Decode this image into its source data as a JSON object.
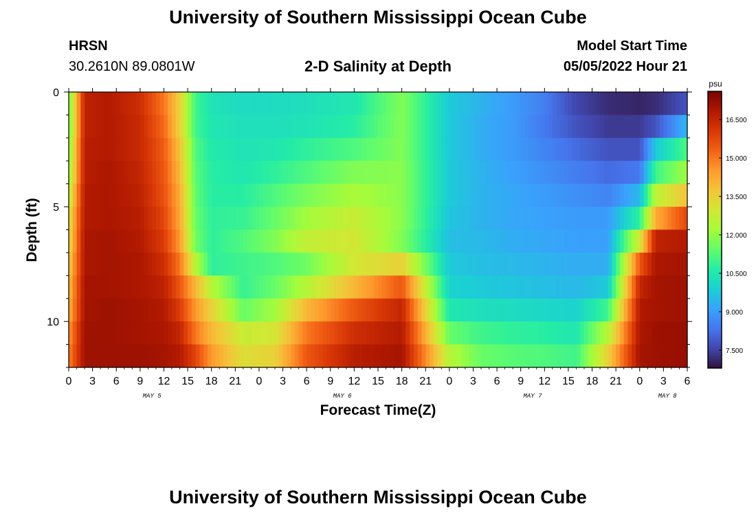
{
  "title": "University of Southern Mississippi Ocean Cube",
  "footer_title": "University of Southern Mississippi Ocean Cube",
  "station": {
    "name": "HRSN",
    "coords": "30.2610N  89.0801W"
  },
  "subtitle": "2-D Salinity at Depth",
  "model_start": {
    "label": "Model Start Time",
    "value": "05/05/2022 Hour 21"
  },
  "chart_data": {
    "type": "heatmap",
    "title": "2-D Salinity at Depth",
    "xlabel": "Forecast Time(Z)",
    "ylabel": "Depth (ft)",
    "x_range_hours_from_may5_00z": [
      0,
      78
    ],
    "y_range_ft": [
      0,
      12
    ],
    "y_inverted": true,
    "x_tick_labels": [
      "0",
      "3",
      "6",
      "9",
      "12",
      "15",
      "18",
      "21",
      "0",
      "3",
      "6",
      "9",
      "12",
      "15",
      "18",
      "21",
      "0",
      "3",
      "6",
      "9",
      "12",
      "15",
      "18",
      "21",
      "0",
      "3",
      "6"
    ],
    "day_labels": [
      {
        "label": "MAY 5",
        "hour": 10.5
      },
      {
        "label": "MAY 6",
        "hour": 34.5
      },
      {
        "label": "MAY 7",
        "hour": 58.5
      },
      {
        "label": "MAY 8",
        "hour": 75.5
      }
    ],
    "y_ticks": [
      0,
      5,
      10
    ],
    "colorbar": {
      "unit": "psu",
      "min": 6.8,
      "max": 17.6,
      "tick_labels": [
        "7.500",
        "9.000",
        "10.500",
        "12.000",
        "13.500",
        "15.000",
        "16.500"
      ],
      "tick_values": [
        7.5,
        9.0,
        10.5,
        12.0,
        13.5,
        15.0,
        16.5
      ]
    },
    "colormap": [
      "#30123b",
      "#4145ab",
      "#4675ed",
      "#39a2fc",
      "#1bcfd4",
      "#24eca6",
      "#61fc6c",
      "#a4fc3b",
      "#d1e834",
      "#f3c63a",
      "#fe9b2d",
      "#f36315",
      "#d93806",
      "#b11901",
      "#7a0402"
    ],
    "depth_levels_ft": [
      0,
      1,
      2,
      3,
      4,
      5,
      6,
      7,
      8,
      9,
      10,
      11
    ],
    "salinity_psu_by_depth": [
      [
        11.5,
        16.6,
        16.8,
        16.3,
        15.0,
        13.5,
        11.0,
        10.4,
        10.2,
        10.2,
        10.3,
        10.5,
        11.8,
        9.8,
        9.4,
        9.0,
        8.5,
        7.6,
        7.2,
        7.1,
        7.2,
        7.8
      ],
      [
        11.5,
        16.6,
        16.8,
        16.4,
        15.2,
        13.5,
        11.0,
        10.5,
        10.3,
        10.3,
        10.4,
        10.7,
        11.8,
        9.8,
        9.3,
        9.0,
        8.4,
        7.8,
        7.4,
        7.4,
        7.8,
        9.5
      ],
      [
        11.8,
        16.7,
        16.8,
        16.4,
        15.4,
        13.8,
        11.2,
        10.6,
        10.4,
        10.5,
        10.8,
        11.2,
        11.8,
        9.8,
        9.3,
        9.0,
        8.6,
        8.2,
        7.8,
        7.8,
        9.8,
        11.2
      ],
      [
        12.0,
        16.7,
        16.9,
        16.5,
        15.5,
        14.0,
        11.3,
        10.7,
        10.5,
        10.8,
        11.2,
        11.8,
        11.9,
        9.8,
        9.4,
        9.1,
        8.8,
        8.5,
        8.2,
        8.4,
        11.0,
        12.2
      ],
      [
        12.5,
        16.8,
        16.9,
        16.6,
        15.6,
        14.2,
        11.4,
        10.7,
        10.7,
        11.2,
        11.7,
        12.3,
        11.9,
        9.8,
        9.4,
        9.2,
        9.0,
        8.8,
        8.6,
        9.5,
        12.6,
        13.8
      ],
      [
        13.0,
        16.8,
        16.9,
        16.7,
        15.8,
        14.3,
        11.5,
        10.8,
        10.9,
        11.5,
        12.2,
        12.8,
        11.9,
        9.7,
        9.4,
        9.2,
        9.1,
        9.0,
        9.0,
        10.8,
        14.2,
        15.8
      ],
      [
        13.2,
        16.9,
        17.0,
        16.8,
        16.0,
        14.5,
        11.6,
        10.8,
        11.2,
        11.8,
        12.7,
        13.0,
        11.8,
        9.6,
        9.5,
        9.3,
        9.2,
        9.1,
        9.1,
        13.0,
        16.6,
        16.8
      ],
      [
        13.5,
        16.9,
        17.0,
        16.9,
        16.3,
        15.0,
        12.5,
        10.8,
        11.0,
        11.2,
        11.6,
        13.0,
        13.5,
        9.8,
        9.6,
        9.5,
        9.4,
        9.3,
        9.3,
        15.5,
        16.9,
        17.0
      ],
      [
        13.8,
        17.0,
        17.0,
        16.9,
        16.6,
        15.5,
        14.0,
        12.5,
        10.9,
        11.5,
        12.5,
        14.0,
        15.5,
        10.0,
        9.8,
        9.7,
        9.6,
        9.5,
        9.8,
        16.5,
        17.0,
        17.1
      ],
      [
        14.0,
        17.0,
        17.1,
        17.0,
        16.8,
        16.0,
        14.5,
        13.5,
        11.5,
        12.2,
        14.0,
        15.5,
        16.5,
        10.5,
        10.3,
        10.2,
        10.1,
        10.0,
        11.0,
        16.8,
        17.0,
        17.1
      ],
      [
        14.5,
        17.1,
        17.1,
        17.0,
        16.9,
        16.5,
        15.0,
        14.0,
        12.8,
        13.0,
        15.0,
        16.3,
        16.8,
        11.5,
        11.0,
        10.8,
        10.7,
        10.5,
        12.5,
        16.9,
        17.1,
        17.2
      ],
      [
        14.8,
        17.1,
        17.1,
        17.1,
        17.0,
        16.8,
        15.8,
        14.5,
        13.2,
        13.5,
        15.5,
        16.7,
        17.0,
        12.5,
        11.5,
        11.3,
        11.2,
        11.0,
        13.5,
        17.0,
        17.1,
        17.2
      ]
    ],
    "salinity_time_hours": [
      0,
      2,
      5,
      9,
      12,
      14,
      16,
      18,
      22,
      26,
      30,
      36,
      42,
      48,
      52,
      56,
      60,
      64,
      68,
      72,
      74,
      78
    ]
  }
}
